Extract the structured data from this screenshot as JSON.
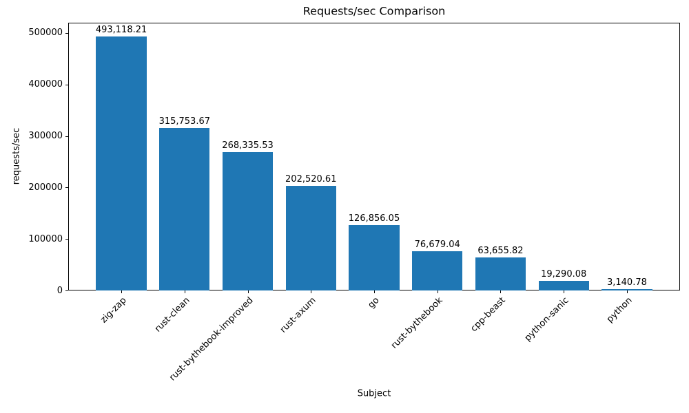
{
  "chart_data": {
    "type": "bar",
    "title": "Requests/sec Comparison",
    "xlabel": "Subject",
    "ylabel": "requests/sec",
    "categories": [
      "zig-zap",
      "rust-clean",
      "rust-bythebook-improved",
      "rust-axum",
      "go",
      "rust-bythebook",
      "cpp-beast",
      "python-sanic",
      "python"
    ],
    "values": [
      493118.21,
      315753.67,
      268335.53,
      202520.61,
      126856.05,
      76679.04,
      63655.82,
      19290.08,
      3140.78
    ],
    "value_labels": [
      "493,118.21",
      "315,753.67",
      "268,335.53",
      "202,520.61",
      "126,856.05",
      "76,679.04",
      "63,655.82",
      "19,290.08",
      "3,140.78"
    ],
    "yticks": [
      0,
      100000,
      200000,
      300000,
      400000,
      500000
    ],
    "ylim": [
      0,
      520000
    ],
    "bar_color": "#1f77b4",
    "text_color": "#000000",
    "grid": false,
    "legend": null,
    "x_tick_rotation": 45
  }
}
